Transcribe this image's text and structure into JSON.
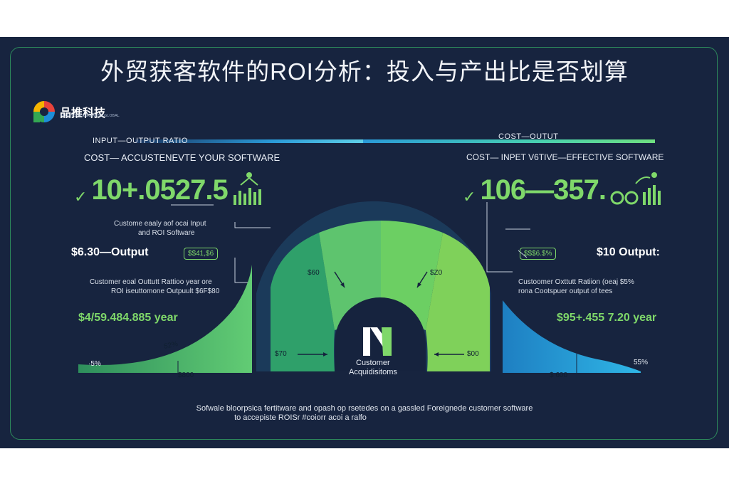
{
  "title": "外贸获客软件的ROI分析：投入与产出比是否划算",
  "brand": {
    "name": "品推科技",
    "tagline": "TAKE YOUR BUSINESS GLOBAL"
  },
  "left_panel": {
    "bar_label": "INPUT—OUTPUT RATIO",
    "subtitle": "COST— ACCUSTENEVTE YOUR SOFTWARE",
    "big_value": "10+.0527.5",
    "annotation": [
      "Custome eaaly aof ocai Input",
      "and ROI Software"
    ],
    "output_label": "$6.30—Output",
    "pill": "$$41,$6",
    "ratio_text": [
      "Customer eoal Outtutt Rattioo year ore",
      "ROI iseuttomone Outpuult $6F$80"
    ],
    "year_value": "$4/59.484.885 year",
    "pct_1": "52%",
    "pct_2": "·5%",
    "base_value": "$800"
  },
  "right_panel": {
    "bar_label": "COST—OUTUT",
    "subtitle": "COST— INPET V6TIVE—EFFECTIVE SOFTWARE",
    "big_value": "106—357.",
    "output_label": "$10 Output:",
    "pill": "$$$6.$%",
    "ratio_text": [
      "Custoomer Oxttutt Ratiion (oeaj $5%",
      "rona Cootspuer output of tees"
    ],
    "year_value": "$95+.455 7.20 year",
    "pct_1": "55%",
    "base_value": "$ 600"
  },
  "center": {
    "labels": [
      "$60",
      "$Z0",
      "$70",
      "$00"
    ],
    "logo_letter": "M",
    "caption_1": "Customer",
    "caption_2": "Acquidisitoms"
  },
  "footer": [
    "Sofwale bloorpsica fertitware and opash op rsetedes on a gassled Foreignede customer software",
    "to accepiste ROISr #coiorr acoi a ralfo"
  ],
  "colors": {
    "background": "#17243f",
    "accent_green": "#7fd86a",
    "accent_blue": "#2aa0d8",
    "frame": "#2d8a5c"
  }
}
